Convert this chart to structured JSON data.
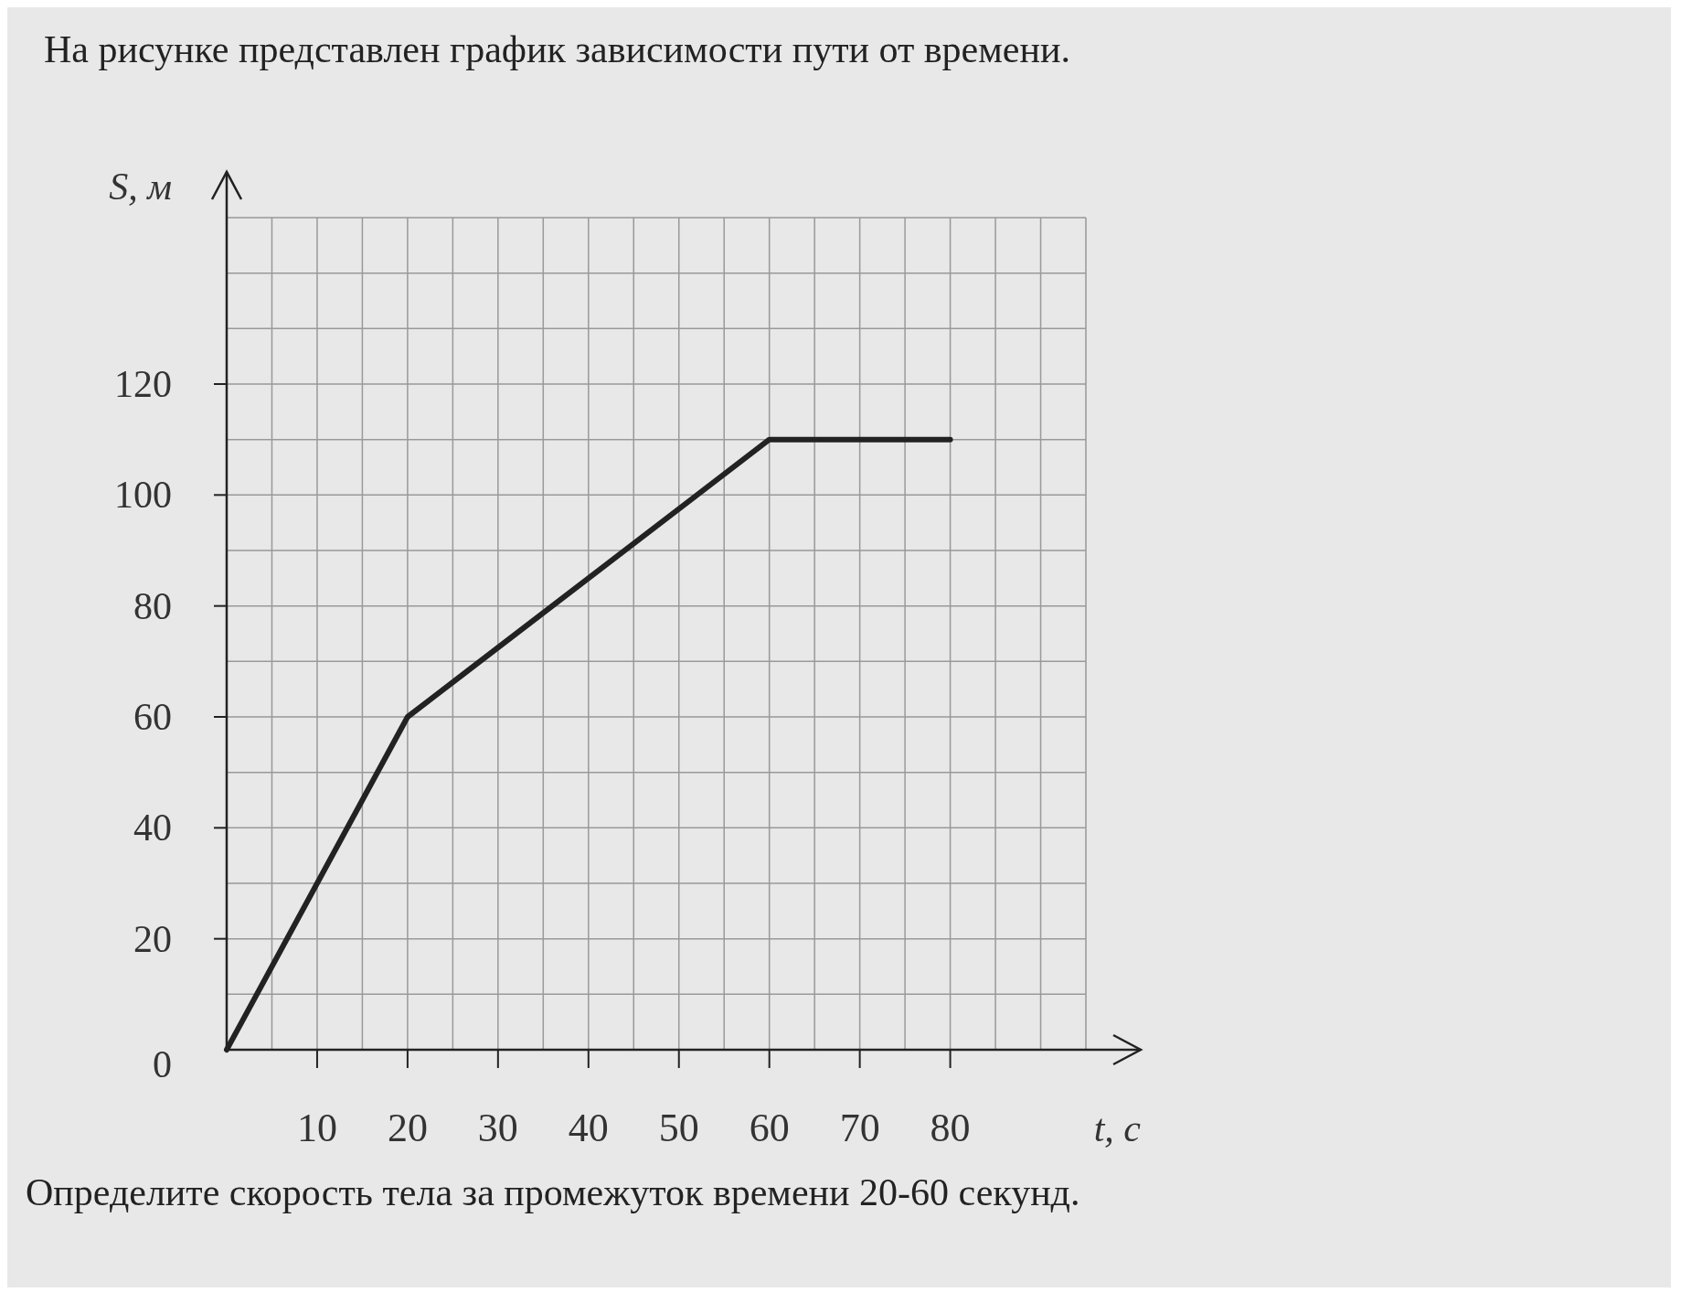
{
  "chart_data": {
    "type": "line",
    "title": "На рисунке представлен график зависимости пути от времени.",
    "xlabel": "t, с",
    "ylabel": "S, м",
    "x": [
      0,
      20,
      60,
      80
    ],
    "series": [
      {
        "color": "#222222",
        "values": [
          0,
          60,
          110,
          110
        ]
      }
    ],
    "xlim": [
      0,
      95
    ],
    "ylim": [
      0,
      150
    ],
    "xticks": [
      {
        "value": 5,
        "label": null
      },
      10,
      {
        "value": 15,
        "label": null
      },
      20,
      {
        "value": 25,
        "label": null
      },
      30,
      {
        "value": 35,
        "label": null
      },
      40,
      {
        "value": 45,
        "label": null
      },
      50,
      {
        "value": 55,
        "label": null
      },
      60,
      {
        "value": 65,
        "label": null
      },
      70,
      {
        "value": 75,
        "label": null
      },
      80,
      {
        "value": 85,
        "label": null
      },
      {
        "value": 90,
        "label": null
      },
      {
        "value": 95,
        "label": null
      }
    ],
    "yticks": [
      0,
      {
        "value": 10,
        "label": null
      },
      20,
      {
        "value": 30,
        "label": null
      },
      40,
      {
        "value": 50,
        "label": null
      },
      60,
      {
        "value": 70,
        "label": null
      },
      80,
      {
        "value": 90,
        "label": null
      },
      100,
      {
        "value": 110,
        "label": null
      },
      120,
      {
        "value": 130,
        "label": null
      },
      {
        "value": 140,
        "label": null
      },
      {
        "value": 150,
        "label": null
      }
    ],
    "grid": true,
    "marker": "none",
    "line_style": "solid",
    "annotations": [
      "Определите скорость тела за промежуток времени 20-60 секунд."
    ]
  }
}
